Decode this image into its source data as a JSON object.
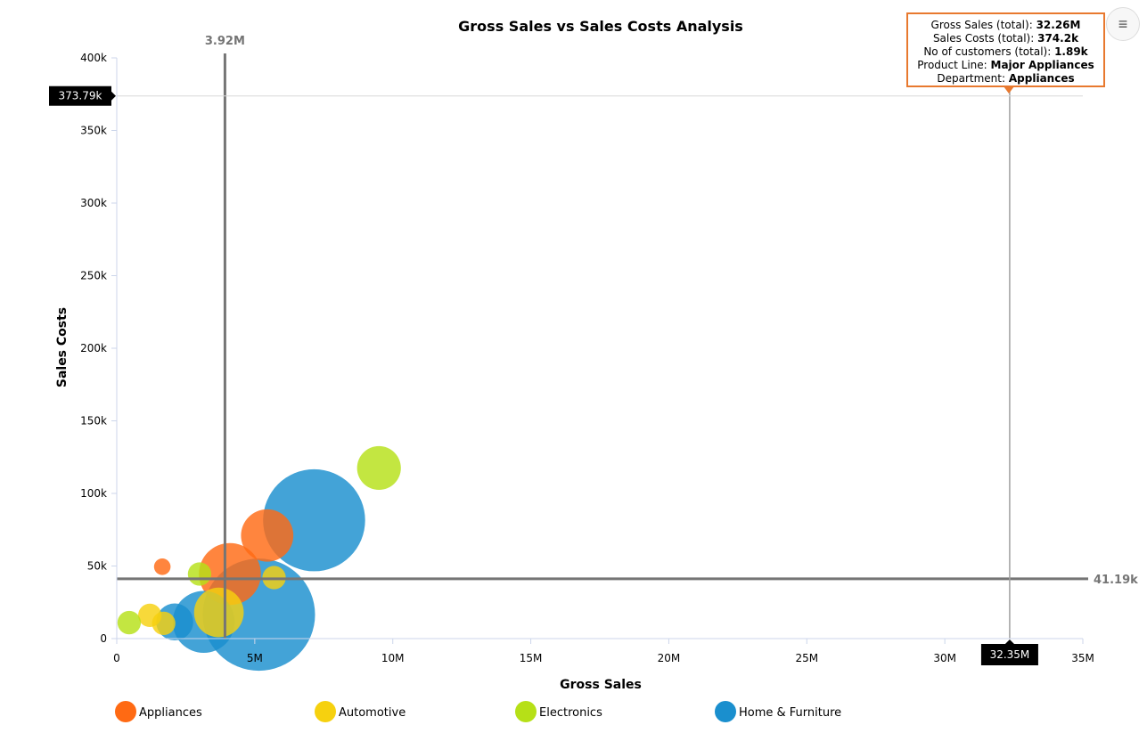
{
  "chart_data": {
    "type": "scatter",
    "subtype": "bubble",
    "title": "Gross Sales vs Sales Costs Analysis",
    "xlabel": "Gross Sales",
    "ylabel": "Sales Costs",
    "xlim": [
      0,
      35000000
    ],
    "ylim": [
      0,
      400000
    ],
    "x_ticks": [
      "0",
      "5M",
      "10M",
      "15M",
      "20M",
      "25M",
      "30M",
      "35M"
    ],
    "y_ticks": [
      "0",
      "50k",
      "100k",
      "150k",
      "200k",
      "250k",
      "300k",
      "350k",
      "400k"
    ],
    "grid": "none",
    "legend_position": "bottom",
    "series": [
      {
        "name": "Appliances",
        "color": "#ff6a13",
        "points": [
          {
            "x": 1650000,
            "y": 49500,
            "z": 1
          },
          {
            "x": 4100000,
            "y": 44500,
            "z": 14
          },
          {
            "x": 5450000,
            "y": 71000,
            "z": 10
          }
        ]
      },
      {
        "name": "Automotive",
        "color": "#f6d10f",
        "points": [
          {
            "x": 1200000,
            "y": 16000,
            "z": 2
          },
          {
            "x": 1700000,
            "y": 10500,
            "z": 2
          },
          {
            "x": 3700000,
            "y": 18000,
            "z": 9
          },
          {
            "x": 5700000,
            "y": 42000,
            "z": 2
          }
        ]
      },
      {
        "name": "Electronics",
        "color": "#b6e017",
        "points": [
          {
            "x": 450000,
            "y": 11000,
            "z": 2
          },
          {
            "x": 3000000,
            "y": 44500,
            "z": 2
          },
          {
            "x": 9500000,
            "y": 117500,
            "z": 7
          }
        ]
      },
      {
        "name": "Home & Furniture",
        "color": "#1a8fce",
        "points": [
          {
            "x": 2100000,
            "y": 11500,
            "z": 5
          },
          {
            "x": 3150000,
            "y": 11500,
            "z": 14
          },
          {
            "x": 5150000,
            "y": 16500,
            "z": 46
          },
          {
            "x": 7150000,
            "y": 81500,
            "z": 38
          }
        ]
      }
    ],
    "reference_lines": [
      {
        "axis": "x",
        "value": 3920000,
        "label": "3.92M"
      },
      {
        "axis": "y",
        "value": 41190,
        "label": "41.19k"
      }
    ],
    "crosshair": {
      "x": 32350000,
      "y": 373790,
      "x_label": "32.35M",
      "y_label": "373.79k"
    },
    "tooltip": {
      "gross_sales_key": "Gross Sales (total):",
      "gross_sales_value": "32.26M",
      "sales_costs_key": "Sales Costs (total):",
      "sales_costs_value": "374.2k",
      "customers_key": "No of customers (total):",
      "customers_value": "1.89k",
      "product_line_key": "Product Line:",
      "product_line_value": "Major Appliances",
      "department_key": "Department:",
      "department_value": "Appliances",
      "border_color": "#e8792f"
    },
    "menu_icon": "hamburger-icon"
  }
}
